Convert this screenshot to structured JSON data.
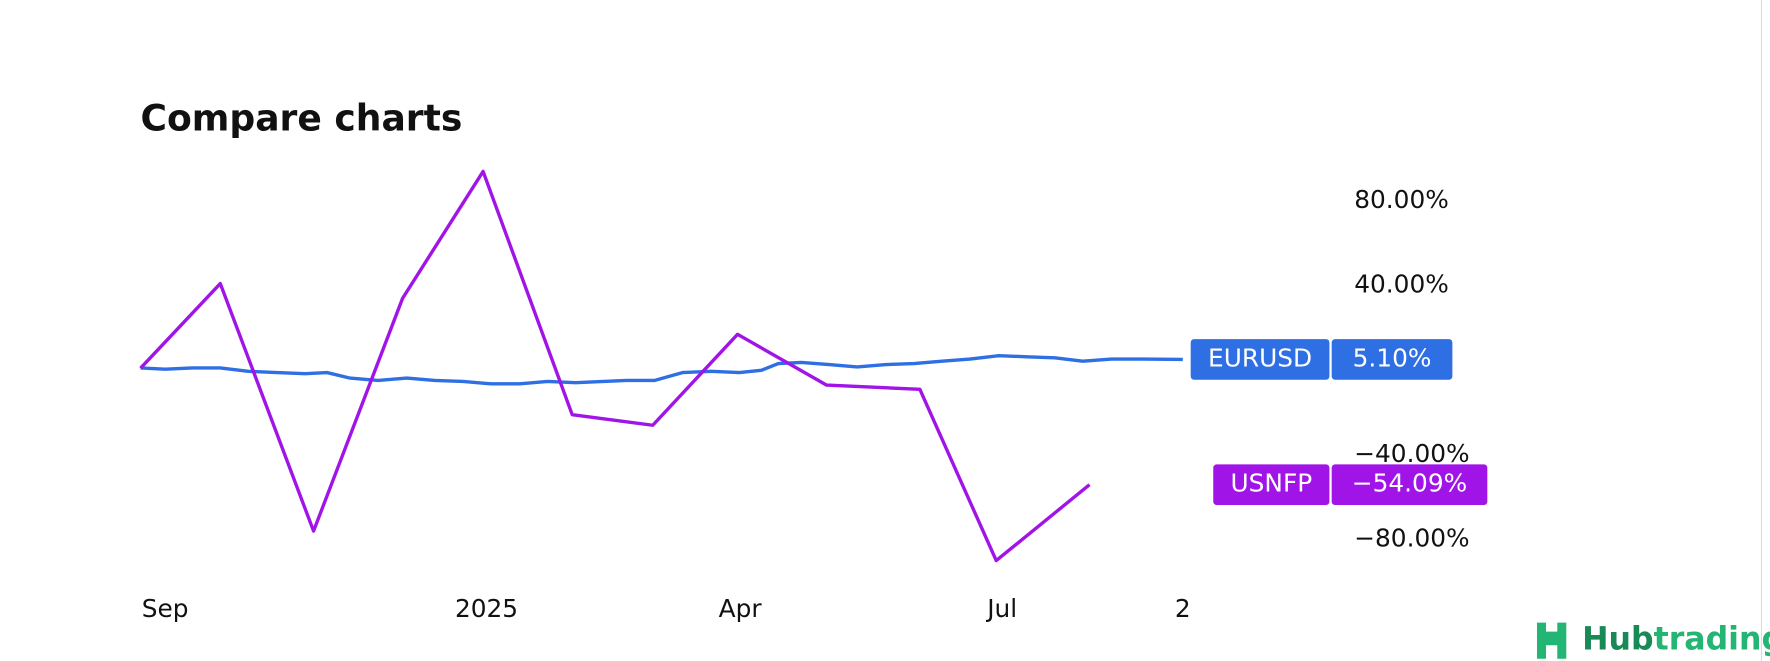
{
  "chart_data": {
    "type": "line",
    "title": "Compare charts",
    "xlim": [
      -0.29,
      12
    ],
    "xticks": [
      {
        "value": 0,
        "label": "Sep"
      },
      {
        "value": 3.79,
        "label": "2025"
      },
      {
        "value": 6.78,
        "label": "Apr"
      },
      {
        "value": 9.87,
        "label": "Jul"
      },
      {
        "value": 12,
        "label": "2"
      }
    ],
    "ylim": [
      -90,
      94
    ],
    "yticks": [
      {
        "value": 80,
        "label": "80.00%"
      },
      {
        "value": 40,
        "label": "40.00%"
      },
      {
        "value": 0,
        "label": "0.00%"
      },
      {
        "value": -40,
        "label": "−40.00%"
      },
      {
        "value": -80,
        "label": "−80.00%"
      }
    ],
    "series": [
      {
        "name": "EURUSD",
        "color": "#2f6fe4",
        "x": [
          -0.29,
          0,
          0.32,
          0.65,
          0.98,
          1.32,
          1.65,
          1.91,
          2.18,
          2.51,
          2.85,
          3.18,
          3.51,
          3.84,
          4.18,
          4.51,
          4.84,
          5.17,
          5.44,
          5.77,
          6.1,
          6.44,
          6.77,
          7.03,
          7.23,
          7.5,
          7.83,
          8.16,
          8.5,
          8.83,
          9.16,
          9.49,
          9.83,
          10.16,
          10.49,
          10.82,
          11.16,
          11.49,
          12
        ],
        "values": [
          1.1,
          0.5,
          1.1,
          1.1,
          -0.5,
          -1.1,
          -1.6,
          -1.1,
          -3.7,
          -4.8,
          -3.7,
          -4.8,
          -5.3,
          -6.4,
          -6.4,
          -5.3,
          -5.9,
          -5.3,
          -4.8,
          -4.8,
          -1.1,
          -0.5,
          -1.1,
          0,
          3.2,
          3.7,
          2.7,
          1.6,
          2.7,
          3.2,
          4.3,
          5.3,
          6.9,
          6.4,
          5.9,
          4.3,
          5.3,
          5.3,
          5.1
        ],
        "last_value": 5.1,
        "last_label": "5.10%"
      },
      {
        "name": "USNFP",
        "color": "#a114e8",
        "x": [
          -0.29,
          0.65,
          1.75,
          2.8,
          3.75,
          4.8,
          5.75,
          6.75,
          7.8,
          8.9,
          9.8,
          10.9
        ],
        "values": [
          1,
          41,
          -76,
          34,
          94,
          -21,
          -26,
          17,
          -7,
          -9,
          -90,
          -54.09
        ],
        "last_value": -54.09,
        "last_label": "−54.09%"
      }
    ]
  },
  "watermark": {
    "prefix": "Hub",
    "suffix": "trading"
  }
}
